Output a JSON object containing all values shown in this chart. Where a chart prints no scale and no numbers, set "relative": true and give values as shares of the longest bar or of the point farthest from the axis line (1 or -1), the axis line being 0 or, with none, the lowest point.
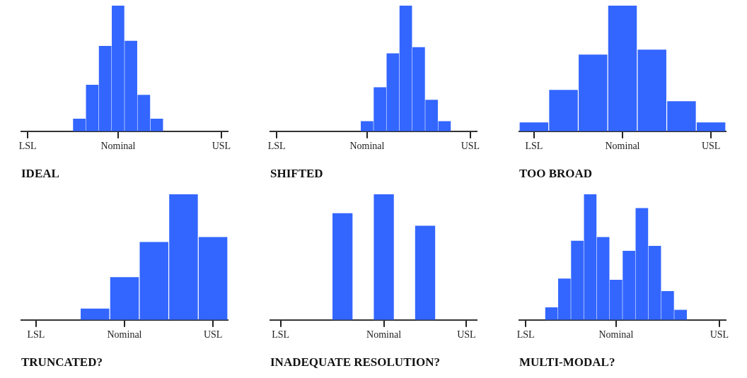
{
  "chart_data": [
    {
      "type": "bar",
      "title": "IDEAL",
      "relative": true,
      "color": "#3366ff",
      "categories": [
        "LSL",
        null,
        null,
        null,
        null,
        null,
        null,
        "Nominal",
        null,
        null,
        null,
        null,
        null,
        null,
        null,
        "USL"
      ],
      "values": [
        null,
        null,
        null,
        null,
        0.1,
        0.37,
        0.68,
        1,
        0.72,
        0.29,
        0.1,
        null,
        null,
        null,
        null,
        null
      ]
    },
    {
      "type": "bar",
      "title": "SHIFTED",
      "relative": true,
      "color": "#3366ff",
      "categories": [
        "LSL",
        null,
        null,
        null,
        null,
        null,
        null,
        "Nominal",
        null,
        null,
        null,
        null,
        null,
        null,
        null,
        "USL"
      ],
      "values": [
        null,
        null,
        null,
        null,
        null,
        null,
        null,
        0.08,
        0.35,
        0.62,
        1,
        0.67,
        0.25,
        0.08,
        null,
        null
      ]
    },
    {
      "type": "bar",
      "title": "TOO BROAD",
      "relative": true,
      "color": "#3366ff",
      "categories": [
        "LSL",
        null,
        null,
        "Nominal",
        null,
        null,
        "USL"
      ],
      "values": [
        0.07,
        0.33,
        0.61,
        1,
        0.65,
        0.24,
        0.07
      ]
    },
    {
      "type": "bar",
      "title": "TRUNCATED?",
      "relative": true,
      "color": "#3366ff",
      "categories": [
        "LSL",
        null,
        null,
        "Nominal",
        null,
        null,
        "USL"
      ],
      "values": [
        null,
        null,
        0.09,
        0.34,
        0.62,
        1,
        0.66
      ]
    },
    {
      "type": "bar",
      "title": "INADEQUATE RESOLUTION?",
      "relative": true,
      "color": "#3366ff",
      "categories": [
        "LSL",
        null,
        null,
        null,
        null,
        "Nominal",
        null,
        null,
        null,
        "USL"
      ],
      "values": [
        null,
        null,
        null,
        0.85,
        null,
        1,
        null,
        0.75,
        null,
        null
      ]
    },
    {
      "type": "bar",
      "title": "MULTI-MODAL?",
      "relative": true,
      "color": "#3366ff",
      "categories": [
        "LSL",
        null,
        null,
        null,
        null,
        null,
        null,
        "Nominal",
        null,
        null,
        null,
        null,
        null,
        null,
        null,
        "USL"
      ],
      "values": [
        null,
        null,
        0.1,
        0.33,
        0.63,
        1,
        0.66,
        0.32,
        0.55,
        0.89,
        0.59,
        0.23,
        0.08,
        null,
        null,
        null
      ]
    }
  ]
}
